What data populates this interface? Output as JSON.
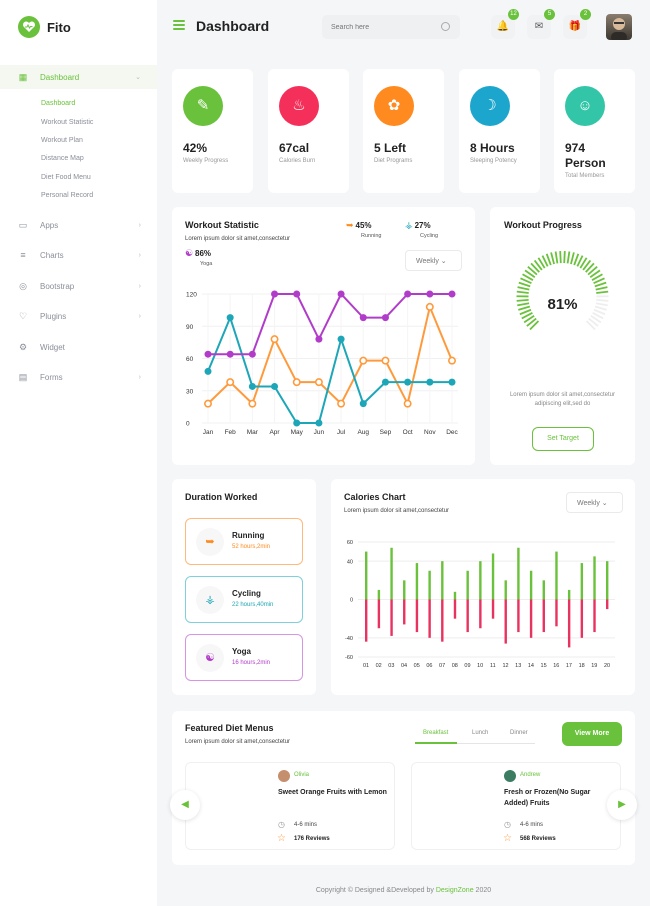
{
  "app": {
    "name": "Fito"
  },
  "sidebar": {
    "items": [
      {
        "label": "Dashboard",
        "icon": "grid-icon",
        "active": true
      },
      {
        "label": "Apps",
        "icon": "monitor-icon"
      },
      {
        "label": "Charts",
        "icon": "sliders-icon"
      },
      {
        "label": "Bootstrap",
        "icon": "globe-icon"
      },
      {
        "label": "Plugins",
        "icon": "heart-icon"
      },
      {
        "label": "Widget",
        "icon": "settings-icon"
      },
      {
        "label": "Forms",
        "icon": "form-icon"
      }
    ],
    "subitems": [
      "Dashboard",
      "Workout Statistic",
      "Workout Plan",
      "Distance Map",
      "Diet Food Menu",
      "Personal Record"
    ]
  },
  "header": {
    "title": "Dashboard",
    "search_placeholder": "Search here",
    "notifications": {
      "bell": "12",
      "chat": "5",
      "gift": "2"
    }
  },
  "stats": [
    {
      "value": "42%",
      "label": "Weekly Progress",
      "color": "#6ac13b",
      "icon": "arm-icon"
    },
    {
      "value": "67cal",
      "label": "Calories Burn",
      "color": "#f4305a",
      "icon": "flame-icon"
    },
    {
      "value": "5 Left",
      "label": "Diet Programs",
      "color": "#ff8a1f",
      "icon": "carrot-icon"
    },
    {
      "value": "8 Hours",
      "label": "Sleeping Potency",
      "color": "#1da6cd",
      "icon": "sleep-icon"
    },
    {
      "value": "974 Person",
      "value_line1": "974",
      "value_line2": "Person",
      "label": "Total Members",
      "color": "#33c5a8",
      "icon": "user-icon"
    }
  ],
  "workout_statistic": {
    "title": "Workout Statistic",
    "subtitle": "Lorem ipsum dolor sit amet,consectetur",
    "legend": [
      {
        "value": "45%",
        "label": "Running",
        "color": "#ff8a1f"
      },
      {
        "value": "27%",
        "label": "Cycling",
        "color": "#1da6b8"
      },
      {
        "value": "86%",
        "label": "Yoga",
        "color": "#b13cc9"
      }
    ],
    "period": "Weekly"
  },
  "chart_data": [
    {
      "type": "line",
      "categories": [
        "Jan",
        "Feb",
        "Mar",
        "Apr",
        "May",
        "Jun",
        "Jul",
        "Aug",
        "Sep",
        "Oct",
        "Nov",
        "Dec"
      ],
      "ylim": [
        0,
        120
      ],
      "yticks": [
        0,
        30,
        60,
        90,
        120
      ],
      "series": [
        {
          "name": "Running",
          "color": "#ff9a3c",
          "values": [
            18,
            38,
            18,
            78,
            38,
            38,
            18,
            58,
            58,
            18,
            108,
            58
          ]
        },
        {
          "name": "Cycling",
          "color": "#1da6b8",
          "values": [
            48,
            98,
            34,
            34,
            0,
            0,
            78,
            18,
            38,
            38,
            38,
            38
          ]
        },
        {
          "name": "Yoga",
          "color": "#b13cc9",
          "values": [
            64,
            64,
            64,
            120,
            120,
            78,
            120,
            98,
            98,
            120,
            120,
            120
          ]
        }
      ]
    },
    {
      "type": "bar",
      "title": "Calories Chart",
      "categories": [
        "01",
        "02",
        "03",
        "04",
        "05",
        "06",
        "07",
        "08",
        "09",
        "10",
        "11",
        "12",
        "13",
        "14",
        "15",
        "16",
        "17",
        "18",
        "19",
        "20"
      ],
      "ylim": [
        -60,
        60
      ],
      "yticks": [
        -60,
        -40,
        0,
        40,
        60
      ],
      "ytick_labels": [
        "-60",
        "-40",
        "0",
        "40",
        "60"
      ],
      "series": [
        {
          "name": "positive",
          "color": "#6ac13b",
          "values": [
            50,
            10,
            54,
            20,
            38,
            30,
            40,
            8,
            30,
            40,
            48,
            20,
            54,
            30,
            20,
            50,
            10,
            38,
            45,
            40
          ]
        },
        {
          "name": "negative",
          "color": "#e8325f",
          "values": [
            -44,
            -30,
            -38,
            -26,
            -34,
            -40,
            -44,
            -20,
            -34,
            -30,
            -20,
            -46,
            -34,
            -40,
            -34,
            -28,
            -50,
            -40,
            -34,
            -10
          ]
        }
      ]
    }
  ],
  "workout_progress": {
    "title": "Workout Progress",
    "percent_label": "81%",
    "progress": 0.81,
    "description": "Lorem ipsum dolor sit amet,consectetur adipiscing elit,sed do",
    "button": "Set Target"
  },
  "duration": {
    "title": "Duration Worked",
    "items": [
      {
        "name": "Running",
        "time": "52 hours,2min",
        "color": "#ff9a3c"
      },
      {
        "name": "Cycling",
        "time": "22 hours,40min",
        "color": "#1da6b8"
      },
      {
        "name": "Yoga",
        "time": "16 hours,2min",
        "color": "#b13cc9"
      }
    ]
  },
  "calories": {
    "title": "Calories Chart",
    "subtitle": "Lorem ipsum dolor sit amet,consectetur",
    "period": "Weekly"
  },
  "diet": {
    "title": "Featured Diet Menus",
    "subtitle": "Lorem ipsum dolor sit amet,consectetur",
    "tabs": [
      "Breakfast",
      "Lunch",
      "Dinner"
    ],
    "active_tab": "Breakfast",
    "button": "View More",
    "items": [
      {
        "author": "Olivia",
        "name": "Sweet Orange Fruits with Lemon",
        "time": "4-6 mins",
        "reviews": "176 Reviews"
      },
      {
        "author": "Andrew",
        "name": "Fresh or Frozen(No Sugar Added) Fruits",
        "time": "4-6 mins",
        "reviews": "568 Reviews"
      }
    ]
  },
  "footer": {
    "text": "Copyright © Designed &Developed by",
    "brand": "DesignZone",
    "year": "2020"
  },
  "colors": {
    "accent": "#6ac13b",
    "background": "#f5f6f8"
  }
}
